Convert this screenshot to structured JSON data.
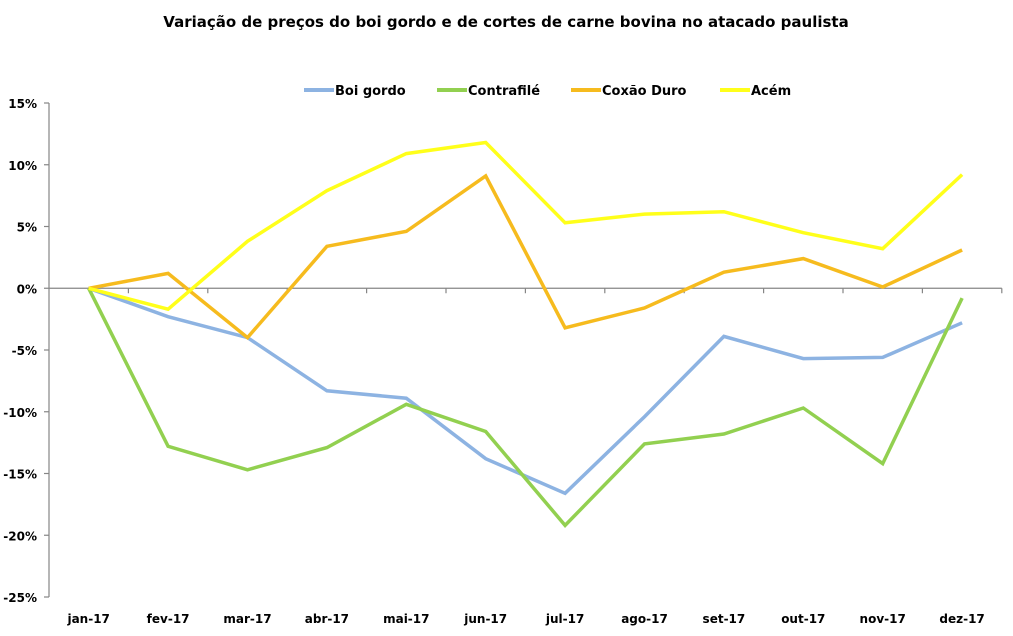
{
  "chart_data": {
    "type": "line",
    "title": "Variação de preços do boi gordo e de cortes de carne bovina no atacado paulista",
    "xlabel": "",
    "ylabel": "",
    "categories": [
      "jan-17",
      "fev-17",
      "mar-17",
      "abr-17",
      "mai-17",
      "jun-17",
      "jul-17",
      "ago-17",
      "set-17",
      "out-17",
      "nov-17",
      "dez-17"
    ],
    "ylim": [
      -25,
      15
    ],
    "yticks": [
      15,
      10,
      5,
      0,
      -5,
      -10,
      -15,
      -20,
      -25
    ],
    "ytick_labels": [
      "15%",
      "10%",
      "5%",
      "0%",
      "-5%",
      "-10%",
      "-15%",
      "-20%",
      "-25%"
    ],
    "legend_position": "top",
    "grid": false,
    "series": [
      {
        "name": "Boi gordo",
        "color": "#8db3e2",
        "values": [
          0,
          -2.3,
          -4.0,
          -8.3,
          -8.9,
          -13.8,
          -16.6,
          -10.4,
          -3.9,
          -5.7,
          -5.6,
          -2.8
        ]
      },
      {
        "name": "Contrafilé",
        "color": "#92d050",
        "values": [
          0,
          -12.8,
          -14.7,
          -12.9,
          -9.4,
          -11.6,
          -19.2,
          -12.6,
          -11.8,
          -9.7,
          -14.2,
          -0.8
        ]
      },
      {
        "name": "Coxão Duro",
        "color": "#f6bb1e",
        "values": [
          0,
          1.2,
          -4.0,
          3.4,
          4.6,
          9.1,
          -3.2,
          -1.6,
          1.3,
          2.4,
          0.1,
          3.1
        ]
      },
      {
        "name": "Acém",
        "color": "#ffff1a",
        "values": [
          0,
          -1.7,
          3.8,
          7.9,
          10.9,
          11.8,
          5.3,
          6.0,
          6.2,
          4.5,
          3.2,
          9.2
        ]
      }
    ]
  }
}
